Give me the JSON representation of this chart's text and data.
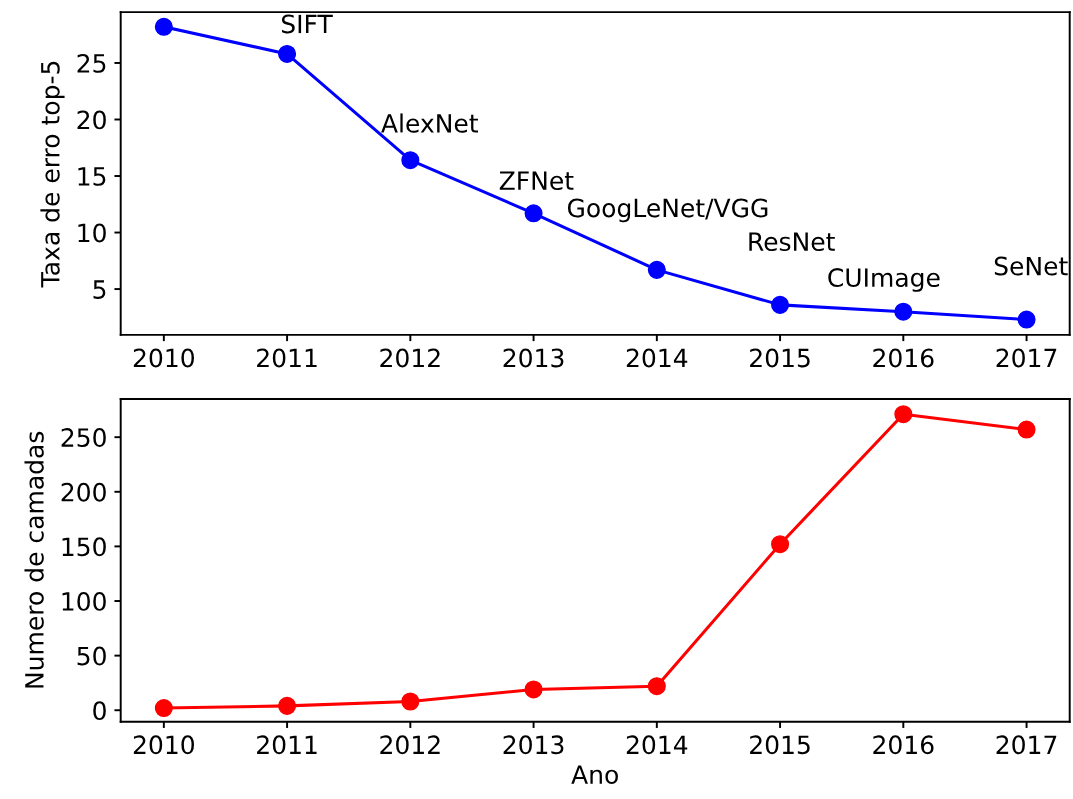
{
  "chart_data": [
    {
      "type": "line",
      "x": [
        2010,
        2011,
        2012,
        2013,
        2014,
        2015,
        2016,
        2017
      ],
      "xlim": [
        2009.65,
        2017.35
      ],
      "xticks": [
        2010,
        2011,
        2012,
        2013,
        2014,
        2015,
        2016,
        2017
      ],
      "ylim": [
        0.95,
        29.5
      ],
      "yticks": [
        5,
        10,
        15,
        20,
        25
      ],
      "ylabel": "Taxa de erro top-5",
      "marker": "circle",
      "line_style": "solid",
      "series": [
        {
          "color": "#0000ff",
          "values": [
            28.2,
            25.8,
            16.4,
            11.7,
            6.7,
            3.6,
            3.0,
            2.3
          ]
        }
      ],
      "annotations": [
        {
          "text": "SIFT",
          "x": 2011,
          "y": 25.8
        },
        {
          "text": "AlexNet",
          "x": 2012,
          "y": 16.4
        },
        {
          "text": "ZFNet",
          "x": 2013,
          "y": 11.7
        },
        {
          "text": "GoogLeNet/VGG",
          "x": 2014,
          "y": 6.7
        },
        {
          "text": "ResNet",
          "x": 2015,
          "y": 3.6
        },
        {
          "text": "CUImage",
          "x": 2016,
          "y": 3.0
        },
        {
          "text": "SeNet",
          "x": 2017,
          "y": 2.3
        }
      ]
    },
    {
      "type": "line",
      "x": [
        2010,
        2011,
        2012,
        2013,
        2014,
        2015,
        2016,
        2017
      ],
      "xlim": [
        2009.65,
        2017.35
      ],
      "xticks": [
        2010,
        2011,
        2012,
        2013,
        2014,
        2015,
        2016,
        2017
      ],
      "ylim": [
        -10.5,
        285
      ],
      "yticks": [
        0,
        50,
        100,
        150,
        200,
        250
      ],
      "xlabel": "Ano",
      "ylabel": "Numero de camadas",
      "marker": "circle",
      "line_style": "solid",
      "series": [
        {
          "color": "#ff0000",
          "values": [
            2,
            4,
            8,
            19,
            22,
            152,
            271,
            257
          ]
        }
      ]
    }
  ]
}
